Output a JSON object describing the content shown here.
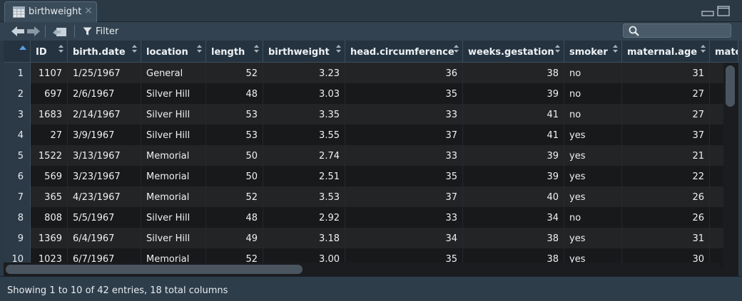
{
  "tab": {
    "title": "birthweight",
    "close": "×"
  },
  "toolbar": {
    "filter_label": "Filter",
    "search_placeholder": ""
  },
  "columns": [
    {
      "label": "",
      "align": "rownum"
    },
    {
      "label": "ID",
      "align": "num"
    },
    {
      "label": "birth.date",
      "align": "left"
    },
    {
      "label": "location",
      "align": "left"
    },
    {
      "label": "length",
      "align": "num"
    },
    {
      "label": "birthweight",
      "align": "num"
    },
    {
      "label": "head.circumference",
      "align": "num"
    },
    {
      "label": "weeks.gestation",
      "align": "num"
    },
    {
      "label": "smoker",
      "align": "left"
    },
    {
      "label": "maternal.age",
      "align": "num"
    },
    {
      "label": "mate",
      "align": "num"
    }
  ],
  "rows": [
    [
      "1",
      "1107",
      "1/25/1967",
      "General",
      "52",
      "3.23",
      "36",
      "38",
      "no",
      "31",
      ""
    ],
    [
      "2",
      "697",
      "2/6/1967",
      "Silver Hill",
      "48",
      "3.03",
      "35",
      "39",
      "no",
      "27",
      ""
    ],
    [
      "3",
      "1683",
      "2/14/1967",
      "Silver Hill",
      "53",
      "3.35",
      "33",
      "41",
      "no",
      "27",
      ""
    ],
    [
      "4",
      "27",
      "3/9/1967",
      "Silver Hill",
      "53",
      "3.55",
      "37",
      "41",
      "yes",
      "37",
      ""
    ],
    [
      "5",
      "1522",
      "3/13/1967",
      "Memorial",
      "50",
      "2.74",
      "33",
      "39",
      "yes",
      "21",
      ""
    ],
    [
      "6",
      "569",
      "3/23/1967",
      "Memorial",
      "50",
      "2.51",
      "35",
      "39",
      "yes",
      "22",
      ""
    ],
    [
      "7",
      "365",
      "4/23/1967",
      "Memorial",
      "52",
      "3.53",
      "37",
      "40",
      "yes",
      "26",
      ""
    ],
    [
      "8",
      "808",
      "5/5/1967",
      "Silver Hill",
      "48",
      "2.92",
      "33",
      "34",
      "no",
      "26",
      ""
    ],
    [
      "9",
      "1369",
      "6/4/1967",
      "Silver Hill",
      "49",
      "3.18",
      "34",
      "38",
      "yes",
      "31",
      ""
    ],
    [
      "10",
      "1023",
      "6/7/1967",
      "Memorial",
      "52",
      "3.00",
      "35",
      "38",
      "yes",
      "30",
      ""
    ]
  ],
  "status": {
    "text": "Showing 1 to 10 of 42 entries, 18 total columns"
  },
  "colors": {
    "accent": "#5aa0e6",
    "header_bg": "#253340",
    "row_odd": "#232426",
    "row_even": "#18191b"
  },
  "icons": [
    "grid-icon",
    "back-icon",
    "forward-icon",
    "popout-icon",
    "filter-icon",
    "search-icon",
    "minimize-icon",
    "maximize-icon"
  ]
}
